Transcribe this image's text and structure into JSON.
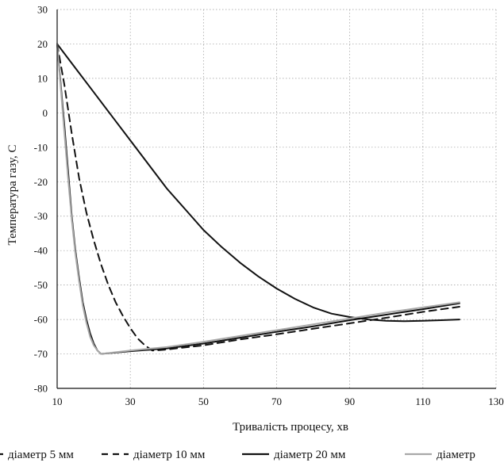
{
  "chart_data": {
    "type": "line",
    "title": "",
    "xlabel": "Тривалість процесу, хв",
    "ylabel": "Температура газу, С",
    "xlim": [
      10,
      130
    ],
    "ylim": [
      -80,
      30
    ],
    "x_ticks": [
      "10",
      "30",
      "50",
      "70",
      "90",
      "110",
      "130"
    ],
    "y_ticks": [
      "30",
      "20",
      "10",
      "0",
      "-10",
      "-20",
      "-30",
      "-40",
      "-50",
      "-60",
      "-70",
      "-80"
    ],
    "grid": true,
    "legend_position": "bottom",
    "series": [
      {
        "name": "діаметр 5 мм",
        "color": "#111111",
        "dash": "solid",
        "points": [
          [
            10,
            20
          ],
          [
            11,
            8
          ],
          [
            12,
            -4
          ],
          [
            13,
            -17
          ],
          [
            14,
            -30
          ],
          [
            15,
            -40
          ],
          [
            16,
            -48
          ],
          [
            17,
            -55
          ],
          [
            18,
            -60
          ],
          [
            19,
            -64
          ],
          [
            20,
            -67
          ],
          [
            21,
            -69
          ],
          [
            22,
            -70
          ],
          [
            30,
            -69.2
          ],
          [
            40,
            -68.4
          ],
          [
            50,
            -67
          ],
          [
            60,
            -65.3
          ],
          [
            70,
            -63.6
          ],
          [
            80,
            -62
          ],
          [
            90,
            -60.2
          ],
          [
            100,
            -58.6
          ],
          [
            110,
            -57
          ],
          [
            120,
            -55.3
          ]
        ]
      },
      {
        "name": "діаметр 10 мм",
        "color": "#111111",
        "dash": "dashed",
        "points": [
          [
            10,
            20
          ],
          [
            12,
            8
          ],
          [
            14,
            -6
          ],
          [
            16,
            -19
          ],
          [
            18,
            -29
          ],
          [
            20,
            -37
          ],
          [
            22,
            -44
          ],
          [
            24,
            -50
          ],
          [
            26,
            -55
          ],
          [
            28,
            -59
          ],
          [
            30,
            -62.5
          ],
          [
            32,
            -65.5
          ],
          [
            34,
            -67.5
          ],
          [
            36,
            -69
          ],
          [
            37,
            -69
          ],
          [
            40,
            -68.7
          ],
          [
            50,
            -67.5
          ],
          [
            60,
            -65.8
          ],
          [
            70,
            -64.3
          ],
          [
            80,
            -62.7
          ],
          [
            90,
            -61.1
          ],
          [
            100,
            -59.5
          ],
          [
            110,
            -57.8
          ],
          [
            120,
            -56.3
          ]
        ]
      },
      {
        "name": "діаметр 20 мм",
        "color": "#111111",
        "dash": "solid",
        "points": [
          [
            10,
            20
          ],
          [
            15,
            13
          ],
          [
            20,
            6
          ],
          [
            25,
            -1
          ],
          [
            30,
            -8
          ],
          [
            35,
            -15
          ],
          [
            40,
            -22
          ],
          [
            45,
            -28
          ],
          [
            50,
            -34
          ],
          [
            55,
            -39
          ],
          [
            60,
            -43.5
          ],
          [
            65,
            -47.5
          ],
          [
            70,
            -51
          ],
          [
            75,
            -54
          ],
          [
            80,
            -56.5
          ],
          [
            85,
            -58.3
          ],
          [
            90,
            -59.3
          ],
          [
            95,
            -60
          ],
          [
            100,
            -60.4
          ],
          [
            105,
            -60.5
          ],
          [
            110,
            -60.4
          ],
          [
            115,
            -60.2
          ],
          [
            120,
            -60
          ]
        ]
      },
      {
        "name": "діаметр",
        "color": "#a8a8a8",
        "dash": "solid",
        "points": [
          [
            10,
            20
          ],
          [
            11,
            7
          ],
          [
            12,
            -6
          ],
          [
            13,
            -19
          ],
          [
            14,
            -31
          ],
          [
            15,
            -41
          ],
          [
            16,
            -49
          ],
          [
            17,
            -56
          ],
          [
            18,
            -61
          ],
          [
            19,
            -65
          ],
          [
            20,
            -67.5
          ],
          [
            21,
            -69
          ],
          [
            22,
            -70
          ],
          [
            30,
            -69
          ],
          [
            40,
            -68
          ],
          [
            50,
            -66.5
          ],
          [
            60,
            -64.8
          ],
          [
            70,
            -63.1
          ],
          [
            80,
            -61.4
          ],
          [
            90,
            -59.7
          ],
          [
            100,
            -58
          ],
          [
            110,
            -56.5
          ],
          [
            120,
            -55
          ]
        ]
      }
    ]
  }
}
